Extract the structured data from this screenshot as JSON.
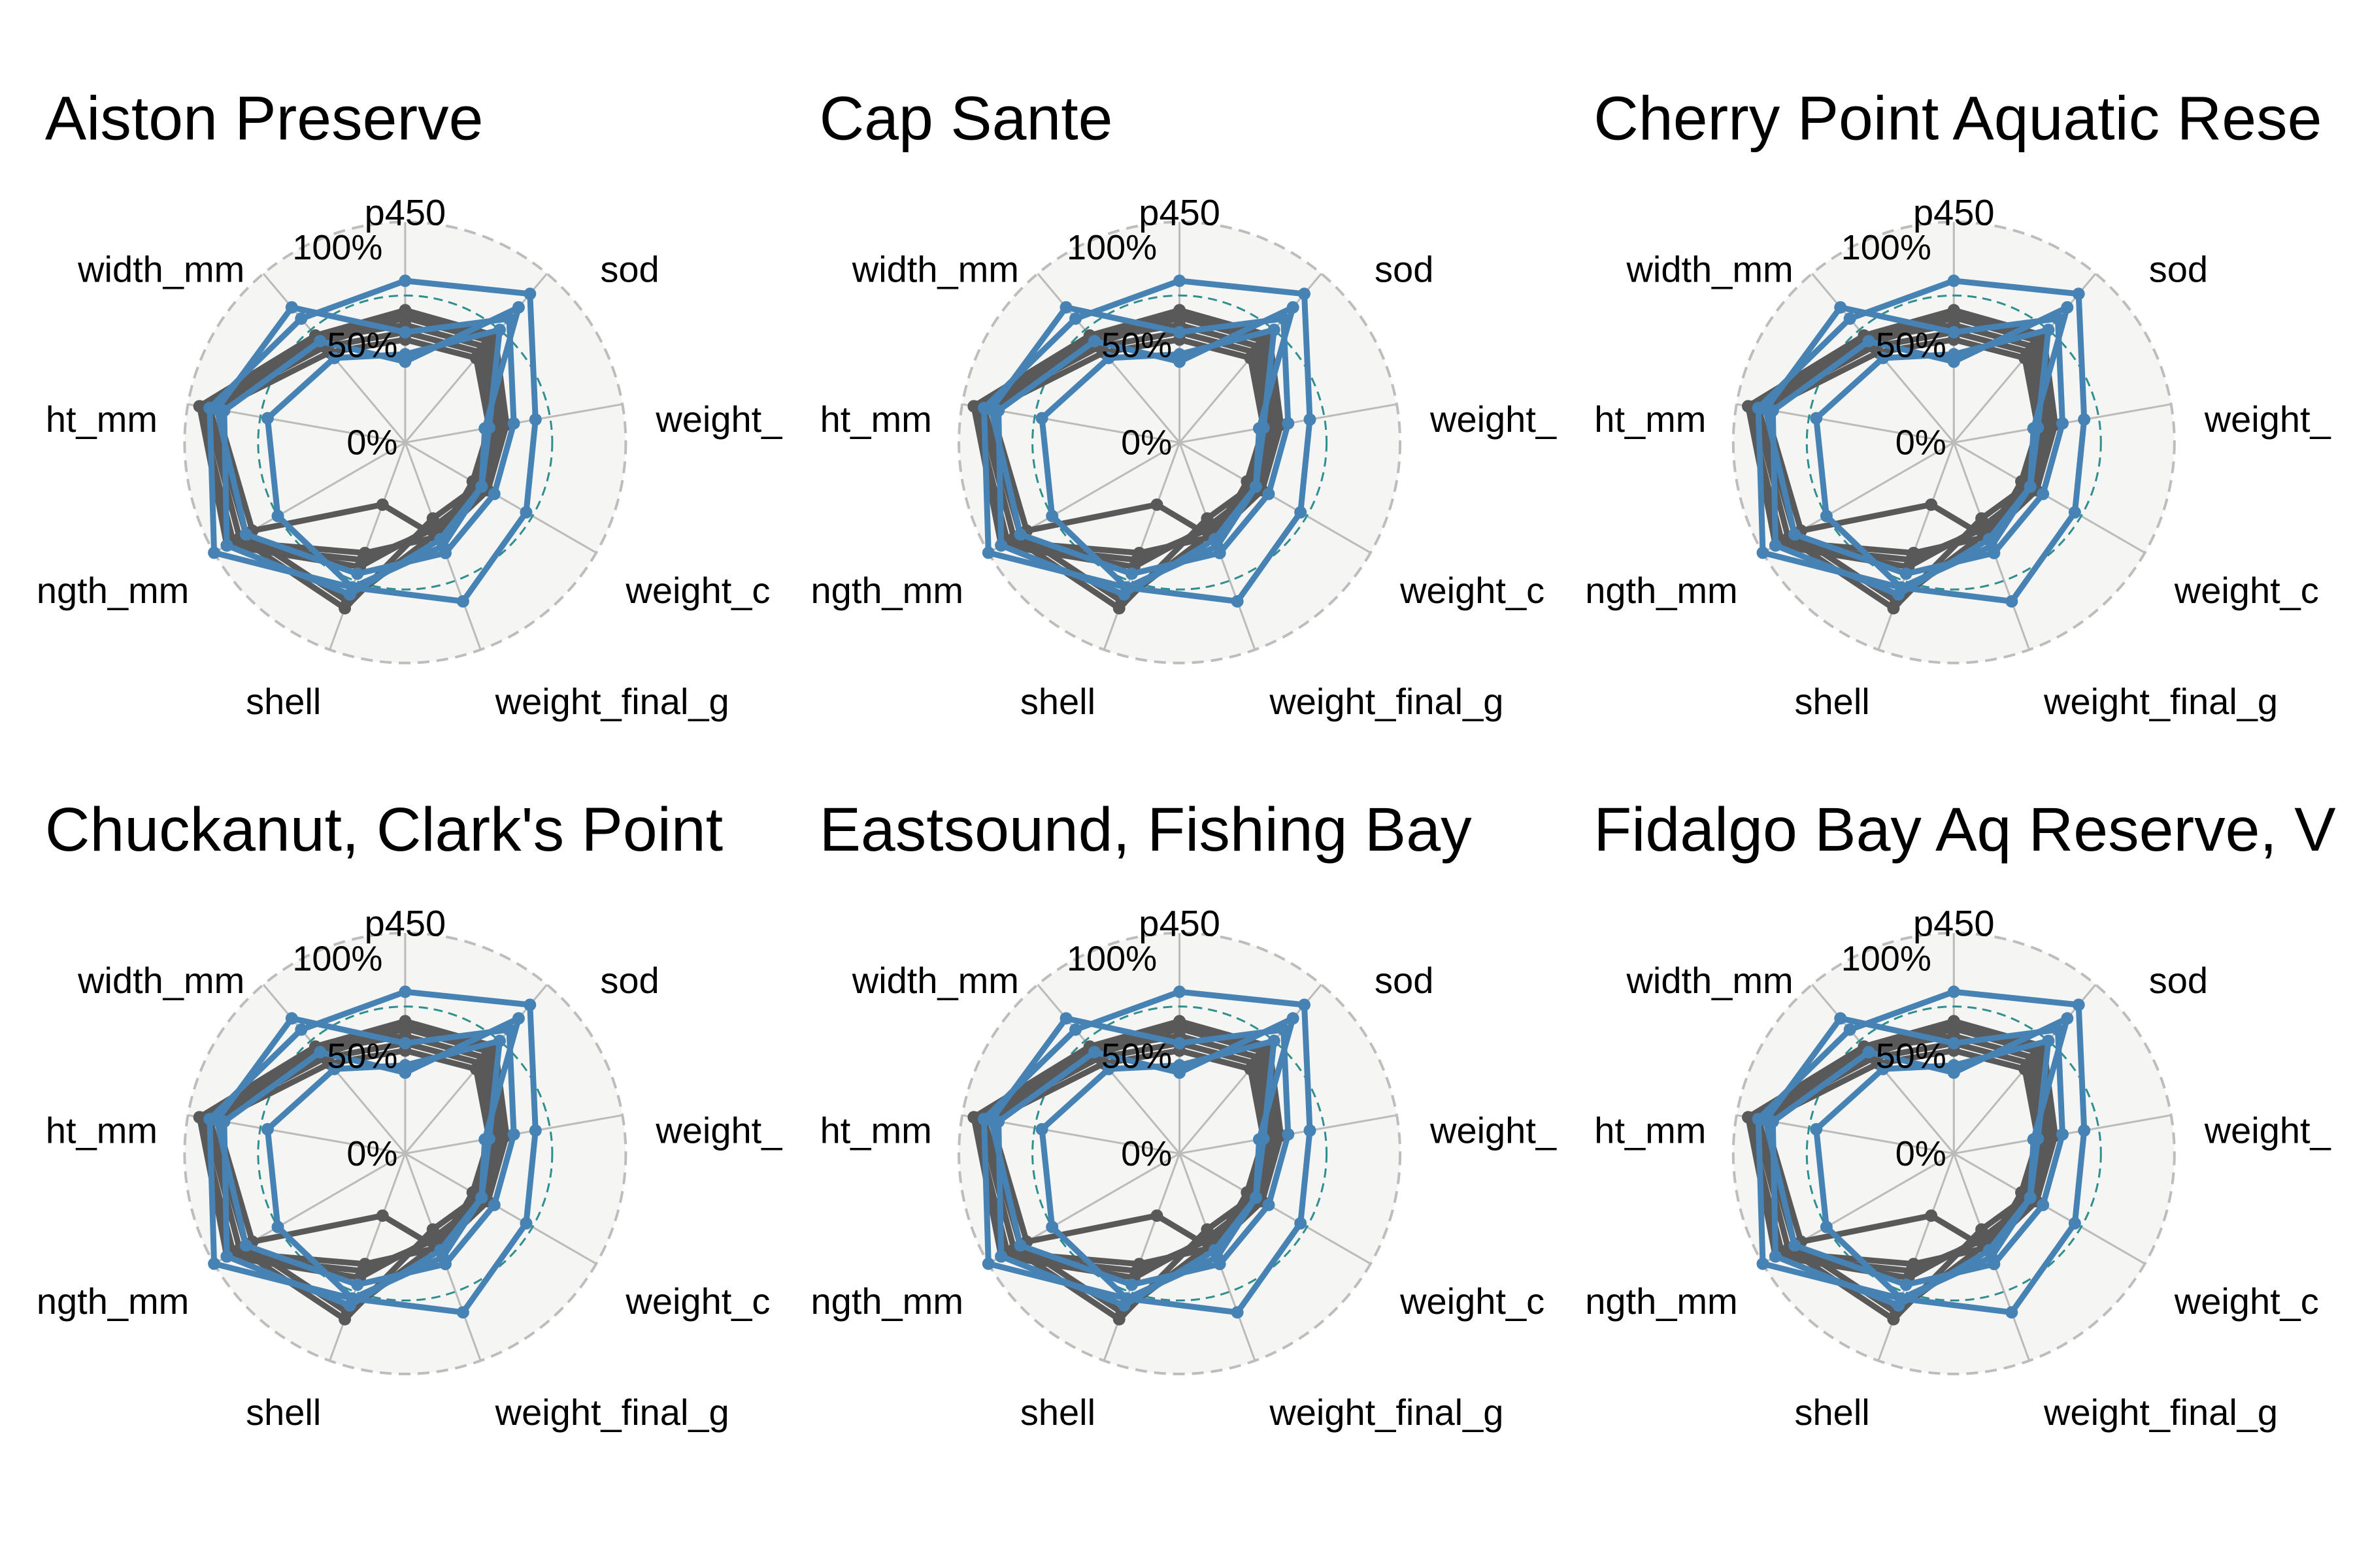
{
  "colors": {
    "background": "#ffffff",
    "plot_panel": "#f5f5f3",
    "grid": "#bbbbbb",
    "outer_ring": "#bdbdbd",
    "reference_ring": "#2f8f8f",
    "series_gray": "#595959",
    "series_blue": "#4682b4"
  },
  "chart_data": {
    "type": "radar",
    "axes": [
      "p450",
      "sod",
      "weight_",
      "weight_c",
      "weight_final_g",
      "shell",
      "ngth_mm",
      "ht_mm",
      "width_mm"
    ],
    "tick_labels": [
      "0%",
      "50%",
      "100%"
    ],
    "rlim": [
      -50,
      100
    ],
    "reference_ring_value": 50,
    "grid": true,
    "legend": "none",
    "series": [
      {
        "color": "#595959",
        "values": [
          40,
          45,
          20,
          15,
          18,
          30,
          85,
          92,
          45
        ]
      },
      {
        "color": "#595959",
        "values": [
          35,
          40,
          15,
          10,
          12,
          35,
          90,
          92,
          38
        ]
      },
      {
        "color": "#595959",
        "values": [
          38,
          42,
          18,
          12,
          10,
          40,
          90,
          90,
          40
        ]
      },
      {
        "color": "#595959",
        "values": [
          30,
          35,
          12,
          8,
          5,
          70,
          80,
          88,
          42
        ]
      },
      {
        "color": "#595959",
        "values": [
          25,
          30,
          10,
          5,
          15,
          65,
          75,
          85,
          35
        ]
      },
      {
        "color": "#595959",
        "values": [
          20,
          25,
          8,
          3,
          20,
          -5,
          70,
          80,
          30
        ]
      },
      {
        "color": "#4682b4",
        "values": [
          60,
          82,
          40,
          45,
          65,
          55,
          100,
          85,
          60
        ]
      },
      {
        "color": "#4682b4",
        "values": [
          25,
          60,
          25,
          20,
          30,
          45,
          75,
          80,
          70
        ]
      },
      {
        "color": "#4682b4",
        "values": [
          5,
          70,
          5,
          10,
          20,
          60,
          90,
          75,
          40
        ]
      },
      {
        "color": "#4682b4",
        "values": [
          10,
          50,
          8,
          10,
          25,
          55,
          50,
          45,
          25
        ]
      }
    ],
    "panels": [
      {
        "title": "Aiston Preserve"
      },
      {
        "title": "Cap Sante"
      },
      {
        "title": "Cherry Point Aquatic Rese"
      },
      {
        "title": "Chuckanut, Clark's Point"
      },
      {
        "title": "Eastsound, Fishing Bay"
      },
      {
        "title": "Fidalgo Bay Aq Reserve, V"
      }
    ]
  }
}
